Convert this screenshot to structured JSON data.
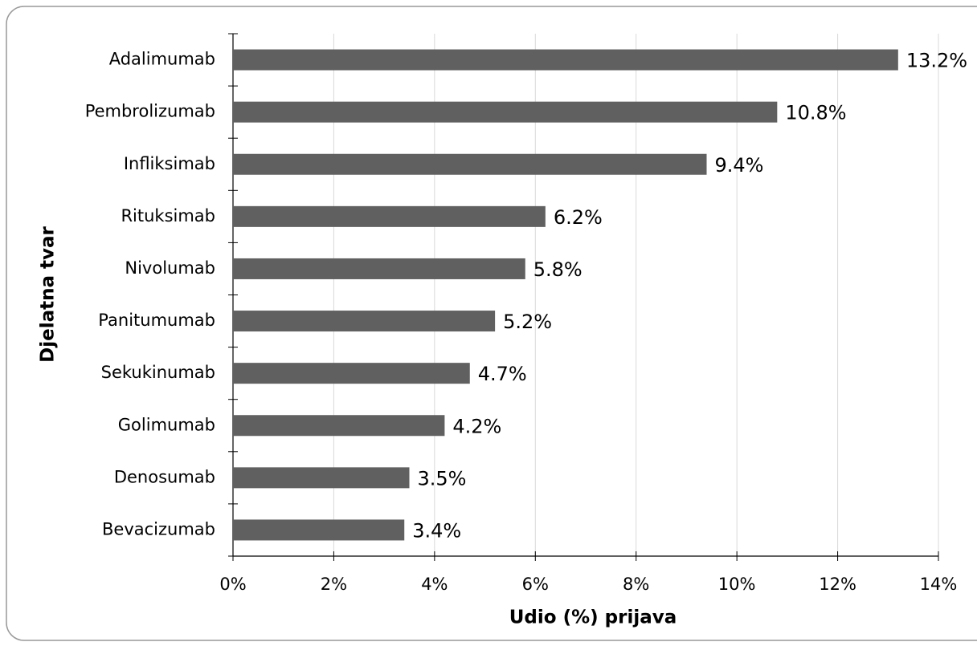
{
  "chart_data": {
    "type": "bar",
    "orientation": "horizontal",
    "xlabel": "Udio (%) prijava",
    "ylabel": "Djelatna tvar",
    "categories": [
      "Adalimumab",
      "Pembrolizumab",
      "Infliksimab",
      "Rituksimab",
      "Nivolumab",
      "Panitumumab",
      "Sekukinumab",
      "Golimumab",
      "Denosumab",
      "Bevacizumab"
    ],
    "values": [
      13.2,
      10.8,
      9.4,
      6.2,
      5.8,
      5.2,
      4.7,
      4.2,
      3.5,
      3.4
    ],
    "value_labels": [
      "13.2%",
      "10.8%",
      "9.4%",
      "6.2%",
      "5.8%",
      "5.2%",
      "4.7%",
      "4.2%",
      "3.5%",
      "3.4%"
    ],
    "color": "#606060",
    "xlim": [
      0,
      14
    ],
    "xticks": [
      {
        "value": 0,
        "label": "0%"
      },
      {
        "value": 2,
        "label": "2%"
      },
      {
        "value": 4,
        "label": "4%"
      },
      {
        "value": 6,
        "label": "6%"
      },
      {
        "value": 8,
        "label": "8%"
      },
      {
        "value": 10,
        "label": "10%"
      },
      {
        "value": 12,
        "label": "12%"
      },
      {
        "value": 14,
        "label": "14%"
      }
    ],
    "grid": true
  }
}
